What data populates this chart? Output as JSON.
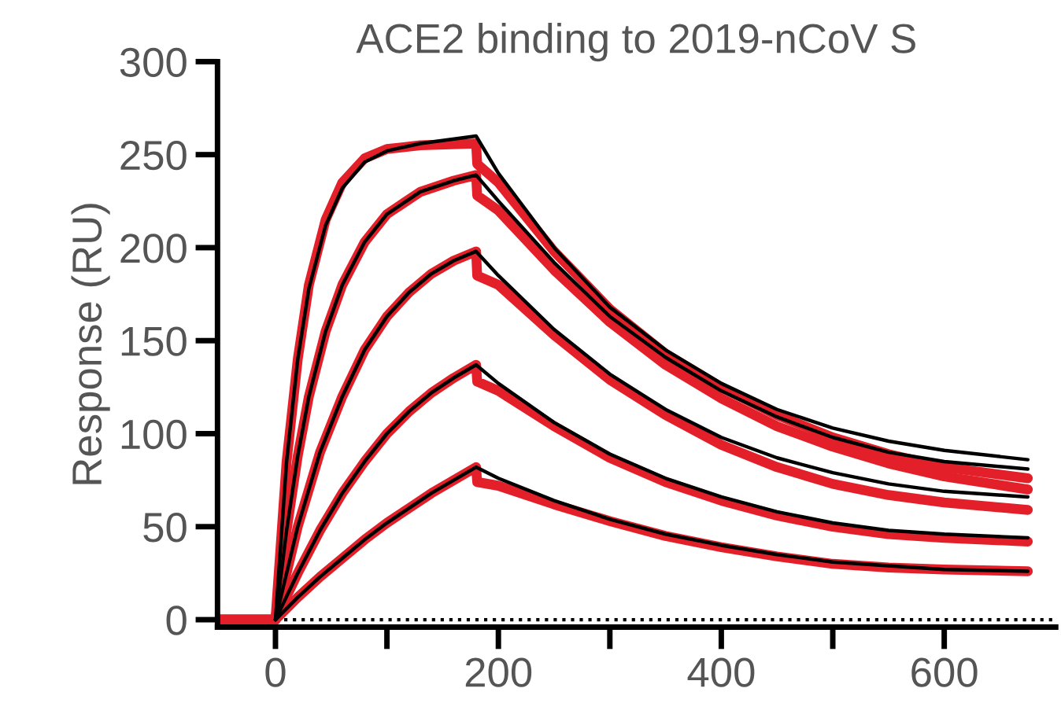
{
  "chart_data": {
    "type": "line",
    "title": "ACE2 binding to 2019-nCoV S",
    "ylabel": "Response (RU)",
    "xlim": [
      -52,
      700
    ],
    "ylim": [
      -4,
      300
    ],
    "xticks": [
      0,
      {
        "value": 100,
        "label": null
      },
      200,
      {
        "value": 300,
        "label": null
      },
      400,
      {
        "value": 500,
        "label": null
      },
      600
    ],
    "yticks": [
      0,
      50,
      100,
      150,
      200,
      250,
      300
    ],
    "grid": false,
    "legend": false,
    "marker": "none",
    "line_style": "solid",
    "ref_lines": [
      {
        "axis": "y",
        "value": 0,
        "label": null,
        "color": "#000000",
        "line_style": "dotted"
      }
    ],
    "series": [
      {
        "color": "#e3202a",
        "x": [
          -50,
          0,
          10,
          20,
          30,
          45,
          60,
          80,
          100,
          130,
          180,
          181,
          200,
          250,
          300,
          350,
          400,
          450,
          500,
          550,
          600,
          675
        ],
        "values": [
          0,
          0,
          85,
          140,
          180,
          215,
          235,
          248,
          253,
          255,
          256,
          245,
          235,
          198,
          167,
          143,
          125,
          110,
          98,
          89,
          82,
          76
        ]
      },
      {
        "color": "#000000",
        "x": [
          0,
          10,
          20,
          30,
          45,
          60,
          80,
          100,
          130,
          180,
          200,
          250,
          300,
          350,
          400,
          450,
          500,
          550,
          600,
          675
        ],
        "values": [
          0,
          85,
          140,
          178,
          212,
          232,
          246,
          252,
          256,
          260,
          240,
          200,
          168,
          145,
          127,
          113,
          103,
          96,
          91,
          86
        ]
      },
      {
        "color": "#e3202a",
        "x": [
          -50,
          0,
          10,
          20,
          30,
          45,
          60,
          80,
          100,
          130,
          160,
          180,
          181,
          200,
          250,
          300,
          350,
          400,
          450,
          500,
          550,
          600,
          675
        ],
        "values": [
          0,
          0,
          48,
          88,
          120,
          155,
          180,
          203,
          218,
          230,
          236,
          239,
          228,
          220,
          188,
          160,
          137,
          119,
          104,
          93,
          84,
          77,
          70
        ]
      },
      {
        "color": "#000000",
        "x": [
          0,
          10,
          20,
          30,
          45,
          60,
          80,
          100,
          130,
          160,
          180,
          200,
          250,
          300,
          350,
          400,
          450,
          500,
          550,
          600,
          675
        ],
        "values": [
          0,
          48,
          88,
          120,
          155,
          180,
          203,
          218,
          230,
          236,
          239,
          225,
          192,
          163,
          141,
          123,
          109,
          98,
          90,
          85,
          81
        ]
      },
      {
        "color": "#e3202a",
        "x": [
          -50,
          0,
          20,
          40,
          60,
          80,
          100,
          120,
          140,
          160,
          180,
          181,
          200,
          250,
          300,
          350,
          400,
          450,
          500,
          550,
          600,
          675
        ],
        "values": [
          0,
          0,
          50,
          90,
          120,
          145,
          163,
          176,
          186,
          193,
          198,
          185,
          180,
          153,
          129,
          110,
          94,
          82,
          73,
          67,
          63,
          59
        ]
      },
      {
        "color": "#000000",
        "x": [
          0,
          20,
          40,
          60,
          80,
          100,
          120,
          140,
          160,
          180,
          200,
          250,
          300,
          350,
          400,
          450,
          500,
          550,
          600,
          675
        ],
        "values": [
          0,
          50,
          90,
          120,
          145,
          163,
          176,
          186,
          193,
          198,
          185,
          156,
          132,
          113,
          98,
          87,
          79,
          73,
          69,
          66
        ]
      },
      {
        "color": "#e3202a",
        "x": [
          -50,
          0,
          20,
          40,
          60,
          80,
          100,
          120,
          140,
          160,
          180,
          181,
          200,
          250,
          300,
          350,
          400,
          450,
          500,
          550,
          600,
          675
        ],
        "values": [
          0,
          0,
          25,
          48,
          68,
          85,
          100,
          112,
          122,
          130,
          137,
          128,
          123,
          104,
          87,
          74,
          64,
          56,
          50,
          46,
          44,
          42
        ]
      },
      {
        "color": "#000000",
        "x": [
          0,
          20,
          40,
          60,
          80,
          100,
          120,
          140,
          160,
          180,
          200,
          250,
          300,
          350,
          400,
          450,
          500,
          550,
          600,
          675
        ],
        "values": [
          0,
          25,
          48,
          68,
          85,
          100,
          112,
          122,
          130,
          137,
          127,
          106,
          89,
          76,
          66,
          58,
          52,
          48,
          46,
          44
        ]
      },
      {
        "color": "#e3202a",
        "x": [
          -50,
          0,
          20,
          40,
          60,
          80,
          100,
          120,
          140,
          160,
          180,
          181,
          200,
          250,
          300,
          350,
          400,
          450,
          500,
          550,
          600,
          675
        ],
        "values": [
          0,
          0,
          12,
          23,
          33,
          43,
          52,
          60,
          68,
          75,
          82,
          74,
          72,
          62,
          53,
          45,
          39,
          34,
          30,
          28,
          27,
          26
        ]
      },
      {
        "color": "#000000",
        "x": [
          0,
          20,
          40,
          60,
          80,
          100,
          120,
          140,
          160,
          180,
          200,
          250,
          300,
          350,
          400,
          450,
          500,
          550,
          600,
          675
        ],
        "values": [
          0,
          12,
          23,
          33,
          43,
          52,
          60,
          68,
          75,
          82,
          76,
          64,
          54,
          46,
          40,
          35,
          31,
          29,
          27,
          26
        ]
      }
    ]
  }
}
